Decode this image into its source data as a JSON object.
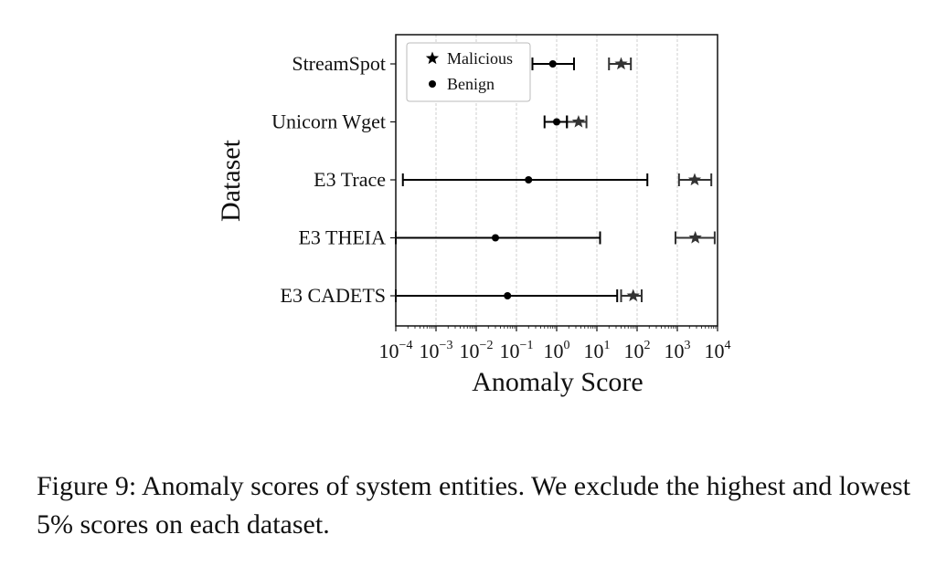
{
  "chart_data": {
    "type": "scatter",
    "xlabel": "Anomaly Score",
    "ylabel": "Dataset",
    "xscale": "log",
    "xlim": [
      0.0001,
      10000
    ],
    "x_ticks": [
      {
        "base": "10",
        "exp": "−4"
      },
      {
        "base": "10",
        "exp": "−3"
      },
      {
        "base": "10",
        "exp": "−2"
      },
      {
        "base": "10",
        "exp": "−1"
      },
      {
        "base": "10",
        "exp": "0"
      },
      {
        "base": "10",
        "exp": "1"
      },
      {
        "base": "10",
        "exp": "2"
      },
      {
        "base": "10",
        "exp": "3"
      },
      {
        "base": "10",
        "exp": "4"
      }
    ],
    "grid": "x-major",
    "legend_placement": "top-left",
    "categories": [
      "StreamSpot",
      "Unicorn Wget",
      "E3 Trace",
      "E3 THEIA",
      "E3 CADETS"
    ],
    "series": [
      {
        "name": "Malicious",
        "marker": "star",
        "color": "#333333",
        "points": [
          {
            "category": "StreamSpot",
            "value": 40,
            "low": 20,
            "high": 70
          },
          {
            "category": "Unicorn Wget",
            "value": 3.5,
            "low": 1.8,
            "high": 5.5
          },
          {
            "category": "E3 Trace",
            "value": 2700,
            "low": 1100,
            "high": 7000
          },
          {
            "category": "E3 THEIA",
            "value": 2800,
            "low": 900,
            "high": 8500
          },
          {
            "category": "E3 CADETS",
            "value": 80,
            "low": 40,
            "high": 130
          }
        ]
      },
      {
        "name": "Benign",
        "marker": "circle",
        "color": "#000000",
        "points": [
          {
            "category": "StreamSpot",
            "value": 0.8,
            "low": 0.25,
            "high": 2.7
          },
          {
            "category": "Unicorn Wget",
            "value": 1.0,
            "low": 0.5,
            "high": 1.8
          },
          {
            "category": "E3 Trace",
            "value": 0.2,
            "low": 0.00015,
            "high": 180
          },
          {
            "category": "E3 THEIA",
            "value": 0.03,
            "low": 0.0001,
            "high": 12
          },
          {
            "category": "E3 CADETS",
            "value": 0.06,
            "low": 0.0001,
            "high": 32
          }
        ]
      }
    ]
  },
  "caption": "Figure 9: Anomaly scores of system entities. We exclude the highest and lowest 5% scores on each dataset."
}
